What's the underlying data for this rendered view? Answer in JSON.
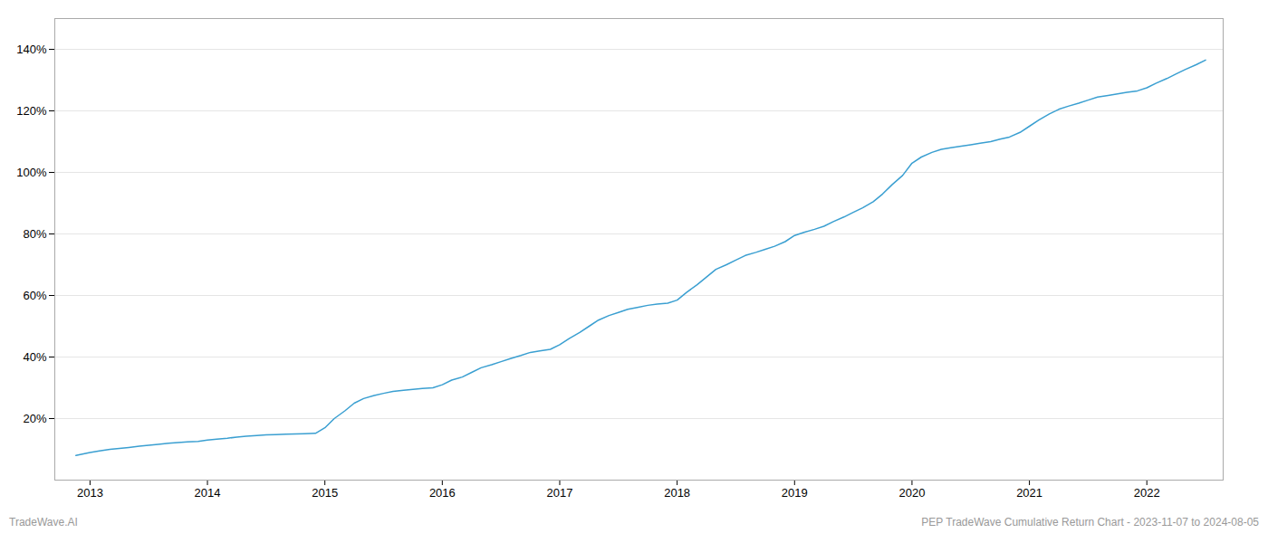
{
  "chart_data": {
    "type": "line",
    "annotations": [
      "TradeWave.AI",
      "PEP TradeWave Cumulative Return Chart - 2023-11-07 to 2024-08-05"
    ],
    "color": "#3a9fd1",
    "grid": "y",
    "xlim": [
      2012.7,
      2022.65
    ],
    "xticks": [
      2013,
      2014,
      2015,
      2016,
      2017,
      2018,
      2019,
      2020,
      2021,
      2022
    ],
    "ylim": [
      0,
      150
    ],
    "yticks": [
      {
        "value": 20,
        "label": "20%"
      },
      {
        "value": 40,
        "label": "40%"
      },
      {
        "value": 60,
        "label": "60%"
      },
      {
        "value": 80,
        "label": "80%"
      },
      {
        "value": 100,
        "label": "100%"
      },
      {
        "value": 120,
        "label": "120%"
      },
      {
        "value": 140,
        "label": "140%"
      }
    ],
    "x": [
      2012.88,
      2013.0,
      2013.08,
      2013.17,
      2013.25,
      2013.33,
      2013.42,
      2013.5,
      2013.58,
      2013.67,
      2013.75,
      2013.83,
      2013.92,
      2014.0,
      2014.08,
      2014.17,
      2014.25,
      2014.33,
      2014.42,
      2014.5,
      2014.58,
      2014.67,
      2014.75,
      2014.83,
      2014.92,
      2015.0,
      2015.08,
      2015.17,
      2015.25,
      2015.33,
      2015.42,
      2015.5,
      2015.58,
      2015.67,
      2015.75,
      2015.83,
      2015.92,
      2016.0,
      2016.08,
      2016.17,
      2016.25,
      2016.33,
      2016.42,
      2016.5,
      2016.58,
      2016.67,
      2016.75,
      2016.83,
      2016.92,
      2017.0,
      2017.08,
      2017.17,
      2017.25,
      2017.33,
      2017.42,
      2017.5,
      2017.58,
      2017.67,
      2017.75,
      2017.83,
      2017.92,
      2018.0,
      2018.08,
      2018.17,
      2018.25,
      2018.33,
      2018.42,
      2018.5,
      2018.58,
      2018.67,
      2018.75,
      2018.83,
      2018.92,
      2019.0,
      2019.08,
      2019.17,
      2019.25,
      2019.33,
      2019.42,
      2019.5,
      2019.58,
      2019.67,
      2019.75,
      2019.83,
      2019.92,
      2020.0,
      2020.08,
      2020.17,
      2020.25,
      2020.33,
      2020.42,
      2020.5,
      2020.58,
      2020.67,
      2020.75,
      2020.83,
      2020.92,
      2021.0,
      2021.08,
      2021.17,
      2021.25,
      2021.33,
      2021.42,
      2021.5,
      2021.58,
      2021.67,
      2021.75,
      2021.83,
      2021.92,
      2022.0,
      2022.08,
      2022.17,
      2022.25,
      2022.33,
      2022.42,
      2022.5
    ],
    "values": [
      8.0,
      9.0,
      9.5,
      10.0,
      10.3,
      10.6,
      11.0,
      11.3,
      11.6,
      12.0,
      12.2,
      12.4,
      12.6,
      13.0,
      13.3,
      13.6,
      14.0,
      14.3,
      14.5,
      14.7,
      14.8,
      14.9,
      15.0,
      15.1,
      15.2,
      17.0,
      20.0,
      22.5,
      25.0,
      26.5,
      27.5,
      28.2,
      28.8,
      29.2,
      29.5,
      29.8,
      30.0,
      31.0,
      32.5,
      33.5,
      35.0,
      36.5,
      37.5,
      38.5,
      39.5,
      40.5,
      41.5,
      42.0,
      42.5,
      44.0,
      46.0,
      48.0,
      50.0,
      52.0,
      53.5,
      54.5,
      55.5,
      56.2,
      56.8,
      57.2,
      57.5,
      58.5,
      61.0,
      63.5,
      66.0,
      68.5,
      70.0,
      71.5,
      73.0,
      74.0,
      75.0,
      76.0,
      77.5,
      79.5,
      80.5,
      81.5,
      82.5,
      84.0,
      85.5,
      87.0,
      88.5,
      90.5,
      93.0,
      96.0,
      99.0,
      103.0,
      105.0,
      106.5,
      107.5,
      108.0,
      108.5,
      109.0,
      109.5,
      110.0,
      110.8,
      111.5,
      113.0,
      115.0,
      117.0,
      119.0,
      120.5,
      121.5,
      122.5,
      123.5,
      124.5,
      125.0,
      125.5,
      126.0,
      126.5,
      127.5,
      129.0,
      130.5,
      132.0,
      133.5,
      135.0,
      136.5
    ]
  }
}
